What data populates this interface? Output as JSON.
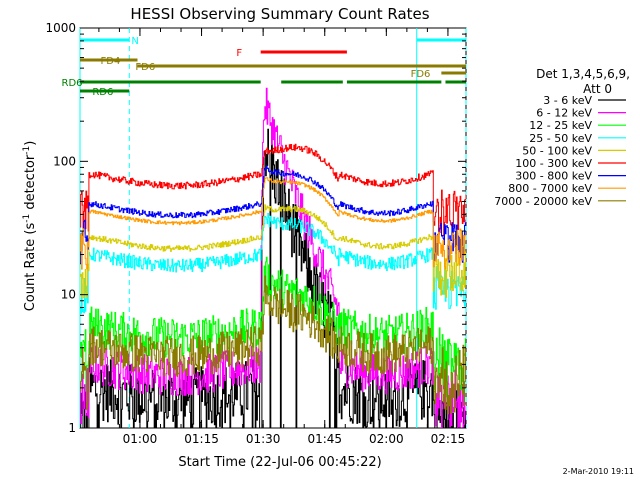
{
  "colors": {
    "black": "#000000",
    "magenta": "#ff00ff",
    "green": "#00ff00",
    "cyan": "#00ffff",
    "yellow": "#d6cc00",
    "red": "#ff0000",
    "navy": "#0000ff",
    "orange": "#ff9a00",
    "olive": "#8b7a00",
    "darkgreen": "#008000"
  },
  "chart_data": {
    "type": "line",
    "title": "HESSI Observing Summary Count Rates",
    "xlabel": "Start Time (22-Jul-06 00:45:22)",
    "ylabel_prefix": "Count Rate (s",
    "ylabel_exp1": "-1",
    "ylabel_mid": " detector",
    "ylabel_exp2": "-1",
    "ylabel_suffix": ")",
    "footer": "2-Mar-2010 19:11",
    "x_start_min": 0,
    "x_end_min": 94,
    "y_scale": "log",
    "ylim": [
      1,
      1000
    ],
    "x_ticks": [
      {
        "at": 14.6,
        "label": "01:00"
      },
      {
        "at": 29.6,
        "label": "01:15"
      },
      {
        "at": 44.6,
        "label": "01:30"
      },
      {
        "at": 59.6,
        "label": "01:45"
      },
      {
        "at": 74.6,
        "label": "02:00"
      },
      {
        "at": 89.6,
        "label": "02:15"
      }
    ],
    "y_ticks": [
      {
        "at": 1,
        "label": "1"
      },
      {
        "at": 10,
        "label": "10"
      },
      {
        "at": 100,
        "label": "100"
      },
      {
        "at": 1000,
        "label": "1000"
      }
    ],
    "legend_title": "Det 1,3,4,5,6,9,",
    "legend_subtitle": "Att 0",
    "series": [
      {
        "name": "3 - 6 keV",
        "color": "black",
        "level": 2.0,
        "peak": 130,
        "noise": 0.55,
        "floor": true
      },
      {
        "name": "6 - 12 keV",
        "color": "magenta",
        "level": 3.0,
        "peak": 270,
        "noise": 0.35,
        "floor": false
      },
      {
        "name": "12 - 25 keV",
        "color": "green",
        "level": 5.8,
        "peak": 14,
        "noise": 0.35,
        "floor": false
      },
      {
        "name": "25 - 50 keV",
        "color": "cyan",
        "level": 20.0,
        "peak": 38,
        "noise": 0.12,
        "floor": false
      },
      {
        "name": "50 - 100 keV",
        "color": "yellow",
        "level": 27.0,
        "peak": 45,
        "noise": 0.05,
        "floor": false
      },
      {
        "name": "100 - 300 keV",
        "color": "red",
        "level": 80.0,
        "peak": 120,
        "noise": 0.06,
        "floor": false
      },
      {
        "name": "300 - 800 keV",
        "color": "navy",
        "level": 48.0,
        "peak": 90,
        "noise": 0.05,
        "floor": false
      },
      {
        "name": "800 - 7000 keV",
        "color": "orange",
        "level": 42.0,
        "peak": 75,
        "noise": 0.03,
        "floor": false
      },
      {
        "name": "7000 - 20000 keV",
        "color": "olive",
        "level": 4.2,
        "peak": 10,
        "noise": 0.35,
        "floor": false
      }
    ],
    "flags": [
      {
        "label": "N",
        "color": "cyan",
        "segments": [
          [
            0,
            12
          ],
          [
            82,
            94
          ]
        ]
      },
      {
        "label": "F",
        "color": "red",
        "segments": [
          [
            44,
            65
          ]
        ]
      },
      {
        "label": "FD4",
        "color": "olive",
        "segments": [
          [
            0,
            14
          ]
        ]
      },
      {
        "label": "FD6",
        "color": "olive",
        "segments": [
          [
            14,
            94
          ]
        ]
      },
      {
        "label": "FD6",
        "color": "olive",
        "segments": [
          [
            88,
            94
          ]
        ]
      },
      {
        "label": "RD6",
        "color": "darkgreen",
        "segments": [
          [
            0,
            44
          ],
          [
            49,
            64
          ],
          [
            65,
            88
          ],
          [
            89,
            94
          ]
        ]
      },
      {
        "label": "RD6",
        "color": "darkgreen",
        "segments": [
          [
            0,
            12
          ]
        ]
      }
    ],
    "night_lines_solid": [
      0,
      82
    ],
    "night_lines_dashed": [
      12,
      94
    ]
  }
}
